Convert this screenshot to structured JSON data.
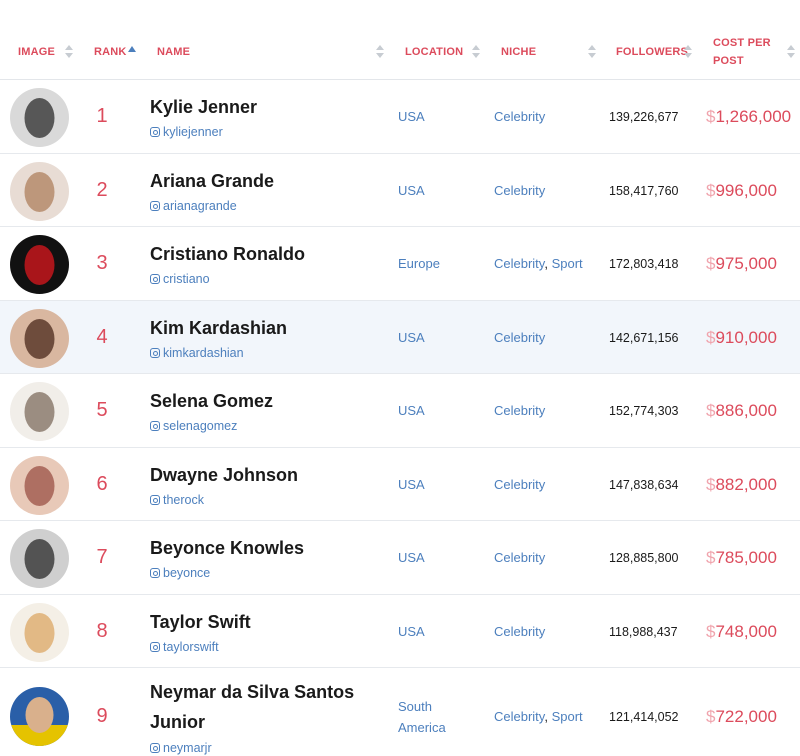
{
  "header": {
    "image": "IMAGE",
    "rank": "RANK",
    "name": "NAME",
    "location": "LOCATION",
    "niche": "NICHE",
    "followers": "FOLLOWERS",
    "cost_line1": "COST PER",
    "cost_line2": "POST"
  },
  "colors": {
    "accent_red": "#dc4b5c",
    "link_blue": "#4c7fbd",
    "highlight_row": "#f2f6fb"
  },
  "rows": [
    {
      "rank": "1",
      "name": "Kylie Jenner",
      "handle": "kyliejenner",
      "location": "USA",
      "niche": [
        "Celebrity"
      ],
      "followers": "139,226,677",
      "currency": "$",
      "cost": "1,266,000",
      "avatar": [
        "#2b2b2b",
        "#d9d9d9"
      ]
    },
    {
      "rank": "2",
      "name": "Ariana Grande",
      "handle": "arianagrande",
      "location": "USA",
      "niche": [
        "Celebrity"
      ],
      "followers": "158,417,760",
      "currency": "$",
      "cost": "996,000",
      "avatar": [
        "#b58b6b",
        "#e8dcd4"
      ]
    },
    {
      "rank": "3",
      "name": "Cristiano Ronaldo",
      "handle": "cristiano",
      "location": "Europe",
      "niche": [
        "Celebrity",
        "Sport"
      ],
      "followers": "172,803,418",
      "currency": "$",
      "cost": "975,000",
      "avatar": [
        "#c4161c",
        "#111111"
      ]
    },
    {
      "rank": "4",
      "name": "Kim Kardashian",
      "handle": "kimkardashian",
      "location": "USA",
      "niche": [
        "Celebrity"
      ],
      "followers": "142,671,156",
      "currency": "$",
      "cost": "910,000",
      "avatar": [
        "#5a3a2a",
        "#d9b7a0"
      ]
    },
    {
      "rank": "5",
      "name": "Selena Gomez",
      "handle": "selenagomez",
      "location": "USA",
      "niche": [
        "Celebrity"
      ],
      "followers": "152,774,303",
      "currency": "$",
      "cost": "886,000",
      "avatar": [
        "#8c7b6f",
        "#f1eee9"
      ]
    },
    {
      "rank": "6",
      "name": "Dwayne Johnson",
      "handle": "therock",
      "location": "USA",
      "niche": [
        "Celebrity"
      ],
      "followers": "147,838,634",
      "currency": "$",
      "cost": "882,000",
      "avatar": [
        "#a35f52",
        "#e8c9b8"
      ]
    },
    {
      "rank": "7",
      "name": "Beyonce Knowles",
      "handle": "beyonce",
      "location": "USA",
      "niche": [
        "Celebrity"
      ],
      "followers": "128,885,800",
      "currency": "$",
      "cost": "785,000",
      "avatar": [
        "#333333",
        "#cfcfcf"
      ]
    },
    {
      "rank": "8",
      "name": "Taylor Swift",
      "handle": "taylorswift",
      "location": "USA",
      "niche": [
        "Celebrity"
      ],
      "followers": "118,988,437",
      "currency": "$",
      "cost": "748,000",
      "avatar": [
        "#e0b37a",
        "#f4efe6"
      ]
    },
    {
      "rank": "9",
      "name": "Neymar da Silva Santos Junior",
      "name_line1": "Neymar da Silva Santos",
      "name_line2": "Junior",
      "handle": "neymarjr",
      "location": "South America",
      "location_line1": "South",
      "location_line2": "America",
      "niche": [
        "Celebrity",
        "Sport"
      ],
      "followers": "121,414,052",
      "currency": "$",
      "cost": "722,000",
      "avatar": [
        "#e5c300",
        "#2a5fa8"
      ]
    }
  ]
}
